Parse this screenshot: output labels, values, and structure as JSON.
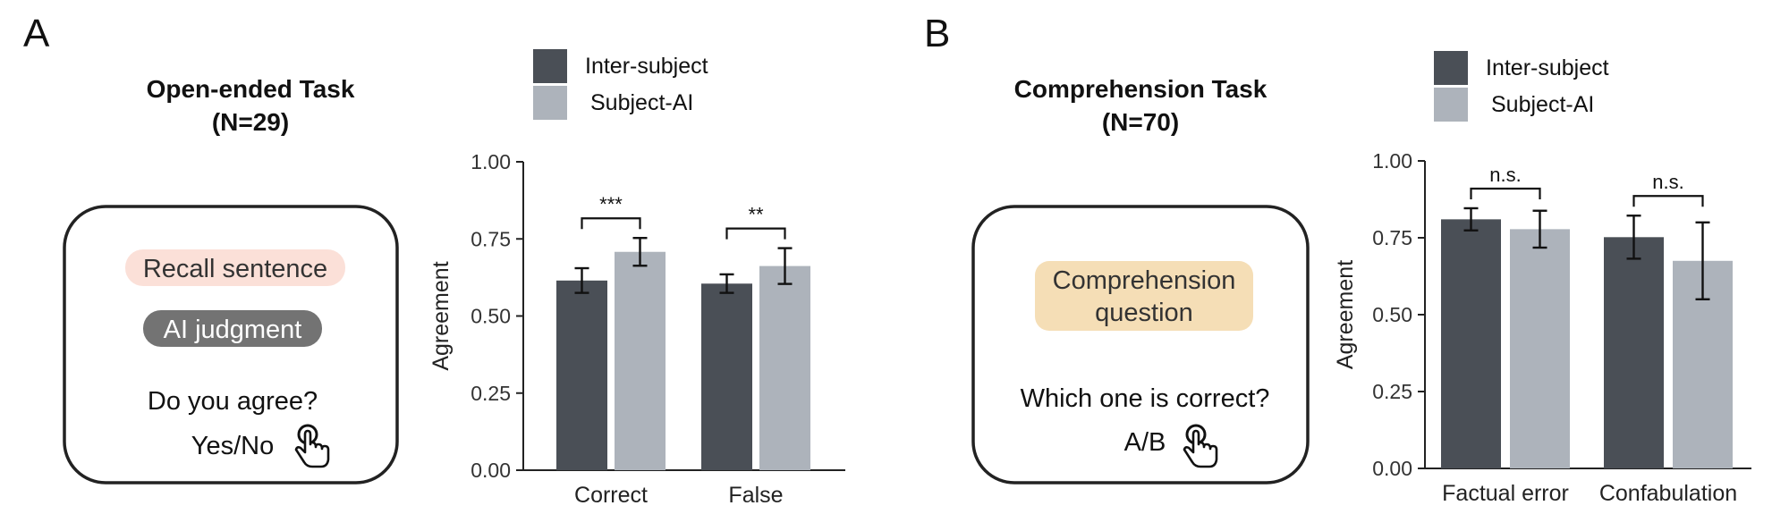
{
  "colors": {
    "inter_subject": "#4a4f56",
    "subject_ai": "#adb3bb",
    "recall_pill": "#fbe0d8",
    "judgment_pill": "#737373",
    "comprehension_pill": "#f5deb6"
  },
  "panel_a": {
    "letter": "A",
    "title_line1": "Open-ended Task",
    "title_line2": "(N=29)",
    "card": {
      "pill1": "Recall sentence",
      "pill2": "AI judgment",
      "question": "Do you agree?",
      "answer": "Yes/No",
      "icon": "hand-pointer-icon"
    }
  },
  "panel_b": {
    "letter": "B",
    "title_line1": "Comprehension Task",
    "title_line2": "(N=70)",
    "card": {
      "pill_line1": "Comprehension",
      "pill_line2": "question",
      "question": "Which one is correct?",
      "answer": "A/B",
      "icon": "hand-pointer-icon"
    }
  },
  "chart_data": [
    {
      "type": "bar",
      "ylabel": "Agreement",
      "ylim": [
        0,
        1
      ],
      "yticks": [
        "0.00",
        "0.25",
        "0.50",
        "0.75",
        "1.00"
      ],
      "categories": [
        "Correct",
        "False"
      ],
      "legend": {
        "placement": "top"
      },
      "series": [
        {
          "name": "Inter-subject",
          "values": [
            0.615,
            0.605
          ],
          "errors": [
            0.04,
            0.03
          ]
        },
        {
          "name": "Subject-AI",
          "values": [
            0.708,
            0.662
          ],
          "errors": [
            0.045,
            0.058
          ]
        }
      ],
      "significance": [
        "***",
        "**"
      ]
    },
    {
      "type": "bar",
      "ylabel": "Agreement",
      "ylim": [
        0,
        1
      ],
      "yticks": [
        "0.00",
        "0.25",
        "0.50",
        "0.75",
        "1.00"
      ],
      "categories": [
        "Factual error",
        "Confabulation"
      ],
      "legend": {
        "placement": "top"
      },
      "series": [
        {
          "name": "Inter-subject",
          "values": [
            0.81,
            0.752
          ],
          "errors": [
            0.036,
            0.07
          ]
        },
        {
          "name": "Subject-AI",
          "values": [
            0.778,
            0.675
          ],
          "errors": [
            0.06,
            0.125
          ]
        }
      ],
      "significance": [
        "n.s.",
        "n.s."
      ]
    }
  ]
}
